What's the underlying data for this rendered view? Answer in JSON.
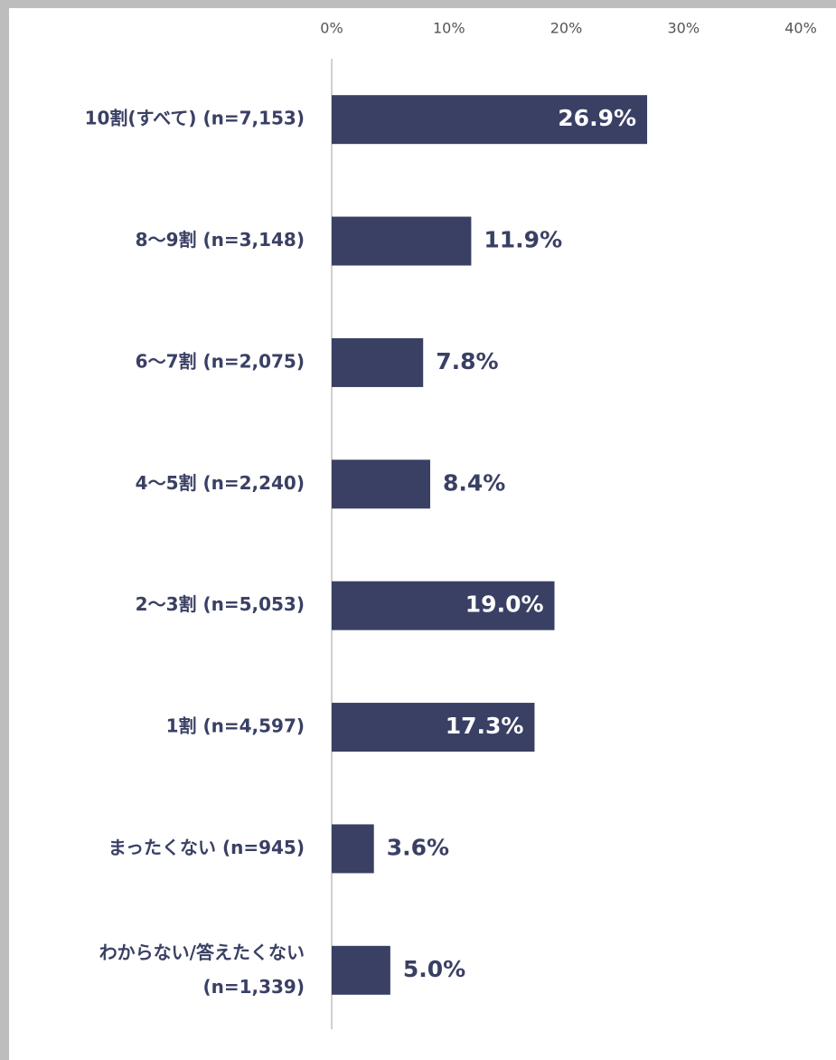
{
  "chart_data": {
    "type": "bar",
    "orientation": "horizontal",
    "categories": [
      "10割(すべて) (n=7,153)",
      "8〜9割 (n=3,148)",
      "6〜7割 (n=2,075)",
      "4〜5割 (n=2,240)",
      "2〜3割 (n=5,053)",
      "1割 (n=4,597)",
      "まったくない (n=945)",
      "わからない/答えたくない\n(n=1,339)"
    ],
    "values": [
      26.9,
      11.9,
      7.8,
      8.4,
      19.0,
      17.3,
      3.6,
      5.0
    ],
    "value_labels": [
      "26.9%",
      "11.9%",
      "7.8%",
      "8.4%",
      "19.0%",
      "17.3%",
      "3.6%",
      "5.0%"
    ],
    "color": "#3a4064",
    "xlim": [
      0,
      40
    ],
    "xticks": [
      {
        "value": 0,
        "label": "0%"
      },
      {
        "value": 10,
        "label": "10%"
      },
      {
        "value": 20,
        "label": "20%"
      },
      {
        "value": 30,
        "label": "30%"
      },
      {
        "value": 40,
        "label": "40%"
      }
    ],
    "grid": false
  }
}
